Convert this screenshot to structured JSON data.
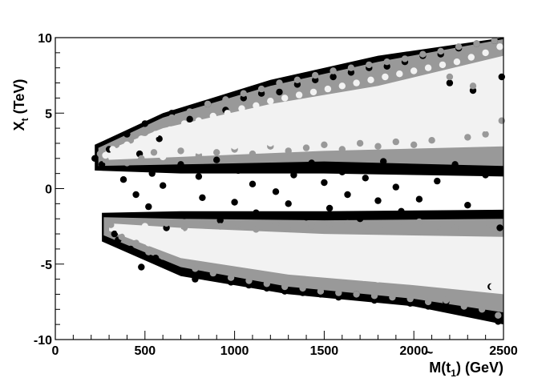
{
  "chart_data": {
    "type": "scatter",
    "xlabel": {
      "main": "M(",
      "symbol": "t",
      "tilde": "~",
      "subscript": "1",
      "unit": ") (GeV)"
    },
    "ylabel": {
      "main": "X",
      "subscript": "t",
      "unit": " (TeV)"
    },
    "xlim": [
      0,
      2500
    ],
    "ylim": [
      -10,
      10
    ],
    "xticks": [
      0,
      500,
      1000,
      1500,
      2000,
      2500
    ],
    "xtick_labels": [
      "0",
      "500",
      "1000",
      "1500",
      "2000",
      "2500"
    ],
    "yticks": [
      -10,
      -5,
      0,
      5,
      10
    ],
    "ytick_labels": [
      "-10",
      "-5",
      "0",
      "5",
      "10"
    ],
    "grid": false,
    "colors": {
      "black": "#000000",
      "gray": "#999999",
      "light": "#f2f2f2"
    },
    "series": [
      {
        "color": "#000000",
        "points": [
          [
            220,
            2.0
          ],
          [
            260,
            1.6
          ],
          [
            300,
            2.6
          ],
          [
            330,
            -3.0
          ],
          [
            350,
            -3.4
          ],
          [
            380,
            0.6
          ],
          [
            400,
            3.6
          ],
          [
            420,
            -4.0
          ],
          [
            450,
            -0.4
          ],
          [
            470,
            2.3
          ],
          [
            480,
            -5.2
          ],
          [
            500,
            4.3
          ],
          [
            520,
            -1.2
          ],
          [
            540,
            1.0
          ],
          [
            560,
            -4.6
          ],
          [
            580,
            3.3
          ],
          [
            600,
            0.2
          ],
          [
            620,
            -2.6
          ],
          [
            650,
            5.0
          ],
          [
            680,
            -5.4
          ],
          [
            700,
            1.6
          ],
          [
            720,
            -1.8
          ],
          [
            750,
            4.6
          ],
          [
            780,
            -6.0
          ],
          [
            800,
            0.8
          ],
          [
            820,
            -0.6
          ],
          [
            850,
            5.6
          ],
          [
            880,
            -5.8
          ],
          [
            900,
            1.9
          ],
          [
            920,
            -2.1
          ],
          [
            950,
            5.2
          ],
          [
            980,
            -6.2
          ],
          [
            1000,
            -0.9
          ],
          [
            1020,
            1.2
          ],
          [
            1050,
            6.0
          ],
          [
            1080,
            -6.4
          ],
          [
            1100,
            0.3
          ],
          [
            1120,
            -1.6
          ],
          [
            1150,
            6.3
          ],
          [
            1180,
            -6.6
          ],
          [
            1200,
            1.5
          ],
          [
            1230,
            -0.2
          ],
          [
            1250,
            6.4
          ],
          [
            1280,
            -6.8
          ],
          [
            1300,
            -1.0
          ],
          [
            1330,
            0.9
          ],
          [
            1350,
            6.9
          ],
          [
            1380,
            -6.9
          ],
          [
            1400,
            -1.9
          ],
          [
            1430,
            1.7
          ],
          [
            1450,
            7.2
          ],
          [
            1480,
            -7.0
          ],
          [
            1500,
            0.4
          ],
          [
            1530,
            -1.3
          ],
          [
            1550,
            7.4
          ],
          [
            1580,
            -7.2
          ],
          [
            1600,
            1.1
          ],
          [
            1630,
            -0.4
          ],
          [
            1650,
            7.7
          ],
          [
            1680,
            -7.0
          ],
          [
            1700,
            -2.0
          ],
          [
            1730,
            0.7
          ],
          [
            1750,
            8.0
          ],
          [
            1780,
            -7.4
          ],
          [
            1800,
            -0.8
          ],
          [
            1830,
            1.8
          ],
          [
            1850,
            8.1
          ],
          [
            1880,
            -7.3
          ],
          [
            1900,
            0.1
          ],
          [
            1930,
            -1.5
          ],
          [
            1950,
            8.4
          ],
          [
            1980,
            -7.6
          ],
          [
            2000,
            1.3
          ],
          [
            2030,
            -0.7
          ],
          [
            2050,
            8.8
          ],
          [
            2080,
            -7.8
          ],
          [
            2100,
            -1.8
          ],
          [
            2130,
            0.5
          ],
          [
            2150,
            8.9
          ],
          [
            2180,
            -7.5
          ],
          [
            2200,
            7.0
          ],
          [
            2230,
            1.6
          ],
          [
            2250,
            9.3
          ],
          [
            2280,
            -7.9
          ],
          [
            2300,
            -1.1
          ],
          [
            2330,
            6.5
          ],
          [
            2350,
            9.6
          ],
          [
            2380,
            -8.2
          ],
          [
            2400,
            0.9
          ],
          [
            2430,
            -6.5
          ],
          [
            2450,
            9.8
          ],
          [
            2470,
            -8.8
          ],
          [
            2480,
            -2.6
          ],
          [
            2490,
            7.4
          ]
        ]
      },
      {
        "color": "#999999",
        "points": [
          [
            250,
            2.3
          ],
          [
            280,
            1.9
          ],
          [
            310,
            -2.4
          ],
          [
            340,
            2.9
          ],
          [
            370,
            -3.2
          ],
          [
            400,
            1.7
          ],
          [
            420,
            3.2
          ],
          [
            450,
            -3.6
          ],
          [
            480,
            2.0
          ],
          [
            500,
            3.7
          ],
          [
            520,
            -4.2
          ],
          [
            550,
            2.4
          ],
          [
            580,
            4.2
          ],
          [
            600,
            -4.5
          ],
          [
            620,
            -2.3
          ],
          [
            650,
            4.7
          ],
          [
            680,
            -4.8
          ],
          [
            700,
            2.5
          ],
          [
            720,
            -2.6
          ],
          [
            750,
            5.1
          ],
          [
            780,
            -5.3
          ],
          [
            800,
            2.2
          ],
          [
            820,
            -2.3
          ],
          [
            850,
            5.6
          ],
          [
            880,
            -5.6
          ],
          [
            900,
            2.4
          ],
          [
            920,
            -2.5
          ],
          [
            950,
            5.9
          ],
          [
            980,
            -5.9
          ],
          [
            1000,
            2.6
          ],
          [
            1020,
            -2.4
          ],
          [
            1050,
            6.3
          ],
          [
            1080,
            -6.1
          ],
          [
            1100,
            2.3
          ],
          [
            1120,
            -2.7
          ],
          [
            1150,
            6.6
          ],
          [
            1180,
            -6.3
          ],
          [
            1200,
            2.8
          ],
          [
            1230,
            -2.3
          ],
          [
            1250,
            7.0
          ],
          [
            1280,
            -6.5
          ],
          [
            1300,
            2.5
          ],
          [
            1330,
            -2.6
          ],
          [
            1350,
            7.2
          ],
          [
            1380,
            -6.6
          ],
          [
            1400,
            2.7
          ],
          [
            1430,
            -2.5
          ],
          [
            1450,
            7.5
          ],
          [
            1480,
            -6.8
          ],
          [
            1500,
            2.9
          ],
          [
            1530,
            -2.4
          ],
          [
            1550,
            7.8
          ],
          [
            1580,
            -6.9
          ],
          [
            1600,
            2.6
          ],
          [
            1630,
            -2.3
          ],
          [
            1650,
            8.0
          ],
          [
            1680,
            -7.0
          ],
          [
            1700,
            3.0
          ],
          [
            1730,
            -2.5
          ],
          [
            1750,
            8.2
          ],
          [
            1780,
            -7.1
          ],
          [
            1800,
            2.8
          ],
          [
            1830,
            -2.4
          ],
          [
            1850,
            8.4
          ],
          [
            1880,
            -7.2
          ],
          [
            1900,
            3.1
          ],
          [
            1930,
            -2.6
          ],
          [
            1950,
            8.6
          ],
          [
            1980,
            -7.3
          ],
          [
            2000,
            2.9
          ],
          [
            2030,
            -2.2
          ],
          [
            2050,
            8.9
          ],
          [
            2080,
            -7.5
          ],
          [
            2100,
            3.2
          ],
          [
            2130,
            -2.5
          ],
          [
            2150,
            9.1
          ],
          [
            2180,
            -7.4
          ],
          [
            2200,
            7.4
          ],
          [
            2230,
            -2.6
          ],
          [
            2250,
            9.4
          ],
          [
            2280,
            -7.8
          ],
          [
            2300,
            3.4
          ],
          [
            2330,
            6.8
          ],
          [
            2350,
            9.6
          ],
          [
            2380,
            -8.0
          ],
          [
            2400,
            3.6
          ],
          [
            2420,
            -2.4
          ],
          [
            2450,
            9.8
          ],
          [
            2470,
            -8.4
          ],
          [
            2490,
            4.5
          ]
        ]
      },
      {
        "color": "#f2f2f2",
        "points": [
          [
            280,
            2.2
          ],
          [
            320,
            2.6
          ],
          [
            360,
            -2.8
          ],
          [
            400,
            2.9
          ],
          [
            440,
            -3.2
          ],
          [
            480,
            3.3
          ],
          [
            520,
            -3.6
          ],
          [
            560,
            3.6
          ],
          [
            600,
            -3.9
          ],
          [
            640,
            3.9
          ],
          [
            680,
            -4.1
          ],
          [
            720,
            4.3
          ],
          [
            760,
            -4.3
          ],
          [
            800,
            4.5
          ],
          [
            840,
            -4.5
          ],
          [
            880,
            4.8
          ],
          [
            920,
            -4.6
          ],
          [
            960,
            5.0
          ],
          [
            1000,
            -4.8
          ],
          [
            1040,
            5.3
          ],
          [
            1080,
            -5.0
          ],
          [
            1120,
            5.5
          ],
          [
            1160,
            -5.1
          ],
          [
            1200,
            5.8
          ],
          [
            1240,
            -5.2
          ],
          [
            1280,
            6.0
          ],
          [
            1320,
            -5.3
          ],
          [
            1360,
            6.2
          ],
          [
            1400,
            -5.5
          ],
          [
            1440,
            6.4
          ],
          [
            1480,
            -5.6
          ],
          [
            1520,
            6.6
          ],
          [
            1560,
            -5.7
          ],
          [
            1600,
            6.8
          ],
          [
            1640,
            -5.8
          ],
          [
            1680,
            7.0
          ],
          [
            1720,
            -5.9
          ],
          [
            1760,
            7.2
          ],
          [
            1800,
            -6.0
          ],
          [
            1840,
            7.4
          ],
          [
            1880,
            -6.0
          ],
          [
            1920,
            7.6
          ],
          [
            1960,
            -6.1
          ],
          [
            2000,
            7.8
          ],
          [
            2040,
            -6.2
          ],
          [
            2080,
            8.0
          ],
          [
            2120,
            -6.3
          ],
          [
            2160,
            8.2
          ],
          [
            2200,
            -6.3
          ],
          [
            2240,
            8.4
          ],
          [
            2280,
            -6.4
          ],
          [
            2320,
            8.7
          ],
          [
            2360,
            -6.5
          ],
          [
            2400,
            9.0
          ],
          [
            2440,
            -6.5
          ],
          [
            2480,
            9.4
          ],
          [
            600,
            2.1
          ],
          [
            800,
            2.5
          ],
          [
            1000,
            2.8
          ],
          [
            1200,
            3.0
          ],
          [
            1400,
            3.2
          ],
          [
            1600,
            3.3
          ],
          [
            1800,
            3.5
          ],
          [
            2000,
            3.6
          ],
          [
            2200,
            3.8
          ],
          [
            2400,
            4.0
          ],
          [
            500,
            -2.5
          ],
          [
            700,
            -2.9
          ],
          [
            900,
            -3.2
          ],
          [
            1100,
            -3.4
          ],
          [
            1300,
            -3.6
          ],
          [
            1500,
            -3.8
          ],
          [
            1700,
            -4.0
          ],
          [
            1900,
            -4.2
          ],
          [
            2100,
            -4.4
          ],
          [
            2300,
            -4.6
          ],
          [
            2450,
            -5.0
          ],
          [
            2350,
            5.5
          ],
          [
            2450,
            6.0
          ],
          [
            2150,
            6.6
          ],
          [
            2300,
            -5.4
          ]
        ]
      }
    ]
  }
}
